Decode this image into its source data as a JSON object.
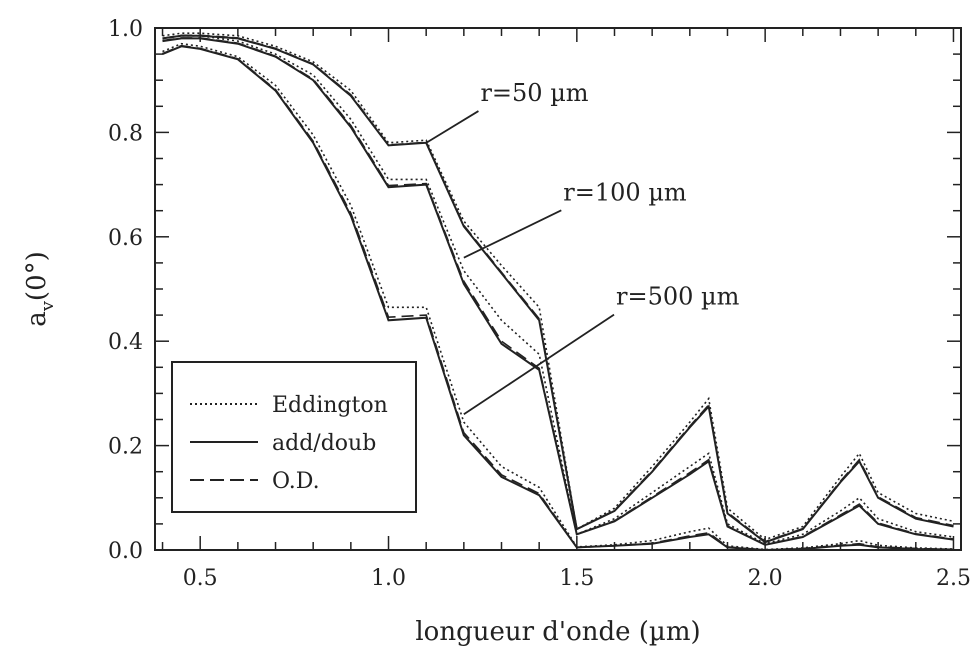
{
  "chart_data": {
    "type": "line",
    "xlabel": "longueur d'onde (µm)",
    "ylabel_main": "a",
    "ylabel_sub": "v",
    "ylabel_tail": "(0°)",
    "xlim": [
      0.38,
      2.52
    ],
    "ylim": [
      0.0,
      1.0
    ],
    "x_ticks": [
      0.5,
      1.0,
      1.5,
      2.0,
      2.5
    ],
    "x_tick_labels": [
      "0.5",
      "1.0",
      "1.5",
      "2.0",
      "2.5"
    ],
    "y_ticks": [
      0.0,
      0.2,
      0.4,
      0.6,
      0.8,
      1.0
    ],
    "y_tick_labels": [
      "0.0",
      "0.2",
      "0.4",
      "0.6",
      "0.8",
      "1.0"
    ],
    "legend": {
      "position": "lower-left",
      "entries": [
        {
          "label": "Eddington",
          "style": "dotted"
        },
        {
          "label": "add/doub",
          "style": "solid"
        },
        {
          "label": "O.D.",
          "style": "dashed"
        }
      ]
    },
    "annotations": [
      {
        "text": "r=50 µm",
        "x": 1.26,
        "y": 0.86,
        "arrow_to": [
          1.1,
          0.78
        ]
      },
      {
        "text": "r=100 µm",
        "x": 1.48,
        "y": 0.67,
        "arrow_to": [
          1.2,
          0.56
        ]
      },
      {
        "text": "r=500 µm",
        "x": 1.62,
        "y": 0.47,
        "arrow_to": [
          1.2,
          0.26
        ]
      }
    ],
    "x": [
      0.4,
      0.45,
      0.5,
      0.6,
      0.7,
      0.8,
      0.9,
      1.0,
      1.1,
      1.2,
      1.3,
      1.4,
      1.5,
      1.6,
      1.7,
      1.8,
      1.85,
      1.9,
      2.0,
      2.1,
      2.2,
      2.25,
      2.3,
      2.4,
      2.5
    ],
    "series": [
      {
        "group": "r=50 µm",
        "style": "solid",
        "values": [
          0.98,
          0.985,
          0.985,
          0.98,
          0.96,
          0.93,
          0.87,
          0.775,
          0.78,
          0.62,
          0.53,
          0.44,
          0.04,
          0.075,
          0.15,
          0.235,
          0.275,
          0.07,
          0.015,
          0.04,
          0.13,
          0.17,
          0.1,
          0.06,
          0.045
        ]
      },
      {
        "group": "r=50 µm",
        "style": "dotted",
        "values": [
          0.985,
          0.99,
          0.99,
          0.985,
          0.965,
          0.935,
          0.88,
          0.78,
          0.785,
          0.63,
          0.545,
          0.465,
          0.04,
          0.08,
          0.16,
          0.245,
          0.29,
          0.08,
          0.02,
          0.045,
          0.14,
          0.185,
          0.11,
          0.07,
          0.055
        ]
      },
      {
        "group": "r=50 µm",
        "style": "dashed",
        "values": [
          0.98,
          0.986,
          0.986,
          0.981,
          0.961,
          0.931,
          0.872,
          0.776,
          0.781,
          0.622,
          0.532,
          0.443,
          0.04,
          0.076,
          0.152,
          0.237,
          0.278,
          0.072,
          0.016,
          0.041,
          0.132,
          0.173,
          0.102,
          0.062,
          0.047
        ]
      },
      {
        "group": "r=100 µm",
        "style": "solid",
        "values": [
          0.975,
          0.98,
          0.98,
          0.97,
          0.945,
          0.9,
          0.81,
          0.695,
          0.7,
          0.51,
          0.395,
          0.345,
          0.03,
          0.055,
          0.1,
          0.145,
          0.17,
          0.045,
          0.01,
          0.025,
          0.065,
          0.085,
          0.05,
          0.03,
          0.02
        ]
      },
      {
        "group": "r=100 µm",
        "style": "dotted",
        "values": [
          0.98,
          0.985,
          0.985,
          0.975,
          0.95,
          0.91,
          0.825,
          0.71,
          0.71,
          0.535,
          0.44,
          0.375,
          0.03,
          0.06,
          0.11,
          0.16,
          0.185,
          0.05,
          0.012,
          0.03,
          0.075,
          0.1,
          0.06,
          0.035,
          0.025
        ]
      },
      {
        "group": "r=100 µm",
        "style": "dashed",
        "values": [
          0.976,
          0.981,
          0.981,
          0.971,
          0.946,
          0.902,
          0.813,
          0.698,
          0.702,
          0.515,
          0.4,
          0.348,
          0.03,
          0.056,
          0.102,
          0.148,
          0.173,
          0.046,
          0.01,
          0.026,
          0.067,
          0.088,
          0.052,
          0.031,
          0.021
        ]
      },
      {
        "group": "r=500 µm",
        "style": "solid",
        "values": [
          0.95,
          0.965,
          0.96,
          0.94,
          0.88,
          0.78,
          0.64,
          0.44,
          0.445,
          0.22,
          0.14,
          0.105,
          0.005,
          0.008,
          0.012,
          0.025,
          0.03,
          0.005,
          0.0,
          0.002,
          0.008,
          0.01,
          0.005,
          0.002,
          0.001
        ]
      },
      {
        "group": "r=500 µm",
        "style": "dotted",
        "values": [
          0.955,
          0.97,
          0.965,
          0.945,
          0.89,
          0.795,
          0.66,
          0.465,
          0.465,
          0.245,
          0.16,
          0.12,
          0.006,
          0.01,
          0.018,
          0.035,
          0.042,
          0.008,
          0.001,
          0.004,
          0.012,
          0.018,
          0.009,
          0.004,
          0.002
        ]
      },
      {
        "group": "r=500 µm",
        "style": "dashed",
        "values": [
          0.951,
          0.966,
          0.961,
          0.941,
          0.882,
          0.783,
          0.645,
          0.446,
          0.45,
          0.225,
          0.144,
          0.108,
          0.005,
          0.008,
          0.013,
          0.027,
          0.033,
          0.006,
          0.0,
          0.003,
          0.009,
          0.012,
          0.006,
          0.003,
          0.001
        ]
      }
    ]
  }
}
